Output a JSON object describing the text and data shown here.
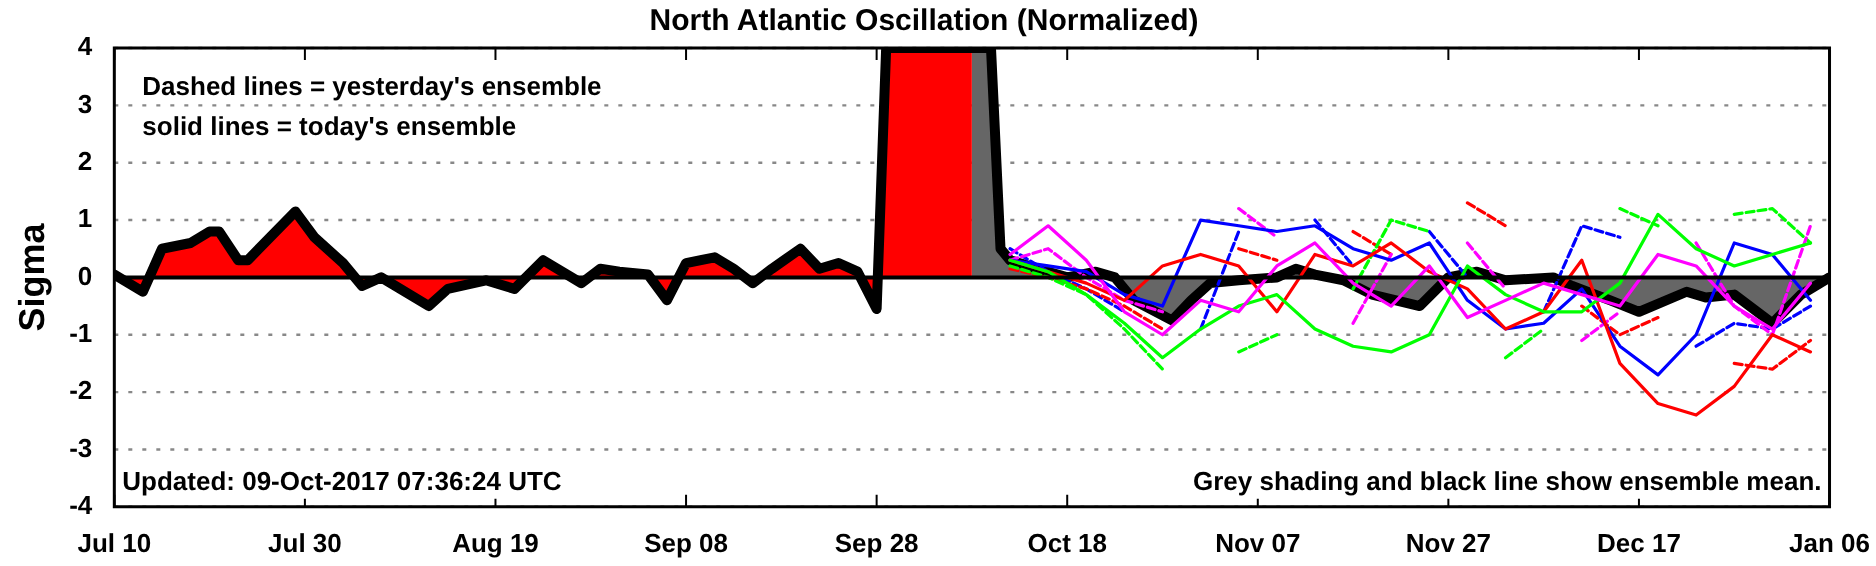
{
  "chart_data": {
    "type": "line",
    "title": "North Atlantic Oscillation (Normalized)",
    "ylabel": "Sigma",
    "annotations": [
      "Dashed lines = yesterday's ensemble",
      "solid lines = today's ensemble",
      "Updated: 09-Oct-2017 07:36:24 UTC",
      "Grey shading and black line show ensemble mean."
    ],
    "xlim": [
      "2017-07-10",
      "2018-01-06"
    ],
    "xticks": [
      {
        "value": "2017-07-10",
        "label": "Jul 10"
      },
      {
        "value": "2017-07-30",
        "label": "Jul 30"
      },
      {
        "value": "2017-08-19",
        "label": "Aug 19"
      },
      {
        "value": "2017-09-08",
        "label": "Sep 08"
      },
      {
        "value": "2017-09-28",
        "label": "Sep 28"
      },
      {
        "value": "2017-10-18",
        "label": "Oct 18"
      },
      {
        "value": "2017-11-07",
        "label": "Nov 07"
      },
      {
        "value": "2017-11-27",
        "label": "Nov 27"
      },
      {
        "value": "2017-12-17",
        "label": "Dec 17"
      },
      {
        "value": "2018-01-06",
        "label": "Jan 06"
      }
    ],
    "ylim": [
      -4,
      4
    ],
    "yticks": [
      -4,
      -3,
      -2,
      -1,
      0,
      1,
      2,
      3,
      4
    ],
    "grid": "y",
    "legend": false,
    "ref_lines": [
      {
        "axis": "y",
        "value": 0,
        "color": "#000000"
      }
    ],
    "x": [
      "2017-10-12",
      "2017-10-16",
      "2017-10-20",
      "2017-10-24",
      "2017-10-28",
      "2017-11-01",
      "2017-11-05",
      "2017-11-09",
      "2017-11-13",
      "2017-11-17",
      "2017-11-21",
      "2017-11-25",
      "2017-11-29",
      "2017-12-03",
      "2017-12-07",
      "2017-12-11",
      "2017-12-15",
      "2017-12-19",
      "2017-12-23",
      "2017-12-27",
      "2017-12-31",
      "2018-01-04"
    ],
    "series": [
      {
        "type": "line",
        "color": "#0000ff",
        "line_style": "dashed",
        "values": [
          0.5,
          0.1,
          -0.2,
          -0.6,
          null,
          -0.9,
          0.8,
          null,
          1.0,
          0.2,
          null,
          0.8,
          0.0,
          null,
          -0.6,
          0.9,
          0.7,
          null,
          -1.2,
          -0.8,
          -0.9,
          -0.5
        ]
      },
      {
        "type": "line",
        "color": "#ff0000",
        "line_style": "dashed",
        "values": [
          0.15,
          0.0,
          -0.2,
          -0.5,
          -0.9,
          null,
          0.5,
          0.3,
          null,
          0.8,
          0.4,
          null,
          1.3,
          0.9,
          null,
          -0.5,
          -1.0,
          -0.7,
          null,
          -1.5,
          -1.6,
          -1.1
        ]
      },
      {
        "type": "line",
        "color": "#00ff00",
        "line_style": "dashed",
        "values": [
          0.2,
          0.0,
          -0.3,
          -0.9,
          -1.6,
          null,
          -1.3,
          -1.0,
          null,
          -0.2,
          1.0,
          0.8,
          null,
          -1.4,
          -0.9,
          null,
          1.2,
          0.9,
          null,
          1.1,
          1.2,
          0.6
        ]
      },
      {
        "type": "line",
        "color": "#ff00ff",
        "line_style": "dashed",
        "values": [
          0.3,
          0.5,
          0.0,
          -0.4,
          -0.6,
          null,
          1.2,
          0.7,
          null,
          -0.8,
          0.4,
          null,
          0.6,
          -0.2,
          null,
          -1.1,
          -0.6,
          null,
          0.6,
          -0.5,
          -1.0,
          0.9
        ]
      },
      {
        "type": "line",
        "color": "#0000ff",
        "line_style": "solid",
        "values": [
          0.3,
          0.2,
          0.1,
          -0.3,
          -0.5,
          1.0,
          0.9,
          0.8,
          0.9,
          0.5,
          0.3,
          0.6,
          -0.4,
          -0.9,
          -0.8,
          -0.2,
          -1.2,
          -1.7,
          -1.0,
          0.6,
          0.4,
          -0.4
        ]
      },
      {
        "type": "line",
        "color": "#ff0000",
        "line_style": "solid",
        "values": [
          0.3,
          0.1,
          -0.1,
          -0.4,
          0.2,
          0.4,
          0.2,
          -0.6,
          0.4,
          0.2,
          0.6,
          0.1,
          -0.2,
          -0.9,
          -0.6,
          0.3,
          -1.5,
          -2.2,
          -2.4,
          -1.9,
          -1.0,
          -1.3
        ]
      },
      {
        "type": "line",
        "color": "#00ff00",
        "line_style": "solid",
        "values": [
          0.3,
          0.1,
          -0.3,
          -0.8,
          -1.4,
          -0.9,
          -0.5,
          -0.3,
          -0.9,
          -1.2,
          -1.3,
          -1.0,
          0.2,
          -0.3,
          -0.6,
          -0.6,
          -0.1,
          1.1,
          0.5,
          0.2,
          0.4,
          0.6
        ]
      },
      {
        "type": "line",
        "color": "#ff00ff",
        "line_style": "solid",
        "values": [
          0.4,
          0.9,
          0.3,
          -0.6,
          -1.0,
          -0.4,
          -0.6,
          0.2,
          0.6,
          -0.1,
          -0.5,
          0.2,
          -0.7,
          -0.4,
          -0.1,
          -0.3,
          -0.5,
          0.4,
          0.2,
          -0.5,
          -0.9,
          -0.1
        ]
      },
      {
        "type": "area",
        "color": "#666666",
        "x": [
          "2017-10-08",
          "2017-10-10",
          "2017-10-11",
          "2017-10-12",
          "2017-10-16",
          "2017-10-18",
          "2017-10-21",
          "2017-10-23",
          "2017-10-25",
          "2017-10-29",
          "2017-10-31",
          "2017-11-02",
          "2017-11-05",
          "2017-11-09",
          "2017-11-11",
          "2017-11-13",
          "2017-11-16",
          "2017-11-19",
          "2017-11-24",
          "2017-11-27",
          "2017-11-30",
          "2017-12-03",
          "2017-12-08",
          "2017-12-10",
          "2017-12-14",
          "2017-12-17",
          "2017-12-22",
          "2017-12-24",
          "2017-12-27",
          "2017-12-31",
          "2018-01-03",
          "2018-01-06"
        ],
        "values": [
          4,
          4,
          0.5,
          0.3,
          0.1,
          0.0,
          0.1,
          0.0,
          -0.4,
          -0.75,
          -0.4,
          -0.1,
          -0.05,
          0.0,
          0.15,
          0.05,
          -0.05,
          -0.3,
          -0.5,
          0.0,
          0.1,
          -0.05,
          0.0,
          -0.15,
          -0.4,
          -0.6,
          -0.25,
          -0.35,
          -0.3,
          -0.8,
          -0.3,
          0.0
        ]
      },
      {
        "type": "area",
        "color": "#ff0000",
        "x": [
          "2017-07-10",
          "2017-07-13",
          "2017-07-15",
          "2017-07-18",
          "2017-07-20",
          "2017-07-21",
          "2017-07-23",
          "2017-07-24",
          "2017-07-29",
          "2017-07-31",
          "2017-08-03",
          "2017-08-05",
          "2017-08-07",
          "2017-08-12",
          "2017-08-14",
          "2017-08-18",
          "2017-08-21",
          "2017-08-24",
          "2017-08-28",
          "2017-08-30",
          "2017-09-01",
          "2017-09-04",
          "2017-09-06",
          "2017-09-08",
          "2017-09-11",
          "2017-09-13",
          "2017-09-15",
          "2017-09-17",
          "2017-09-20",
          "2017-09-22",
          "2017-09-24",
          "2017-09-26",
          "2017-09-28",
          "2017-09-29",
          "2017-10-08"
        ],
        "values": [
          0.05,
          -0.25,
          0.5,
          0.6,
          0.8,
          0.8,
          0.3,
          0.3,
          1.15,
          0.7,
          0.25,
          -0.15,
          0.0,
          -0.5,
          -0.2,
          -0.05,
          -0.2,
          0.3,
          -0.1,
          0.15,
          0.1,
          0.05,
          -0.4,
          0.25,
          0.35,
          0.15,
          -0.1,
          0.15,
          0.5,
          0.15,
          0.25,
          0.1,
          -0.55,
          4,
          4
        ]
      }
    ]
  }
}
